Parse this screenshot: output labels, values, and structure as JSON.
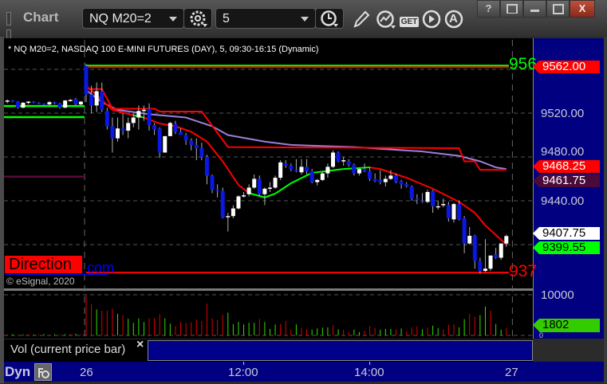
{
  "window": {
    "title": "Chart",
    "symbol": "NQ M20=2",
    "interval": "5",
    "icons": [
      "grip-icon",
      "gear-icon",
      "clock-icon",
      "pencil-icon",
      "line-study-icon",
      "get-icon",
      "play-icon",
      "alert-a-icon"
    ],
    "get_label": "GET",
    "a_label": "A",
    "buttons": {
      "help": "?",
      "close": "X"
    }
  },
  "chart": {
    "header": "* NQ M20=2, NASDAQ 100 E-MINI FUTURES (DAY), 5, 09:30-16:15 (Dynamic)",
    "watermark_box": "Direction",
    "watermark_link": ".com",
    "copyright": "© eSignal, 2020",
    "level_labels": [
      {
        "text": "956",
        "color": "#00ff00"
      },
      {
        "text": "937",
        "color": "#ff0000"
      }
    ],
    "price_tags": [
      {
        "text": "9562.00",
        "bg": "#ff0000",
        "fg": "#ffffff"
      },
      {
        "text": "9468.25",
        "bg": "#ff0000",
        "fg": "#ffffff"
      },
      {
        "text": "9461.75",
        "bg": "#4a0a3a",
        "fg": "#ffffff"
      },
      {
        "text": "9407.75",
        "bg": "#ffffff",
        "fg": "#000000"
      },
      {
        "text": "9399.55",
        "bg": "#00ff00",
        "fg": "#000000"
      }
    ],
    "volume_tag": {
      "text": "1802",
      "bg": "#33cc00",
      "fg": "#000000"
    },
    "volume_ticks": [
      "10000",
      "0"
    ],
    "volume_legend": "Vol (current price bar)",
    "legend_close": "×",
    "dyn_label": "Dyn",
    "colors": {
      "up": "#ffffff",
      "down": "#0a18e6",
      "wick": "#b0b0b0",
      "vol_up": "#33dd00",
      "vol_down": "#dd0000",
      "fast_up": "#00ff00",
      "fast_down": "#ff0000",
      "slow_step": "#ff0000",
      "mid": "#9b7fd8",
      "axis_bg": "#000080"
    }
  },
  "chart_data": {
    "type": "candlestick",
    "title": "* NQ M20=2, NASDAQ 100 E-MINI FUTURES (DAY), 5, 09:30-16:15 (Dynamic)",
    "ylim": [
      9361,
      9587
    ],
    "y_ticks": [
      "9520.00",
      "9480.00",
      "9440.00"
    ],
    "y_tick_values": [
      9520,
      9480,
      9440
    ],
    "grid_values": [
      9560,
      9520,
      9480,
      9440,
      9400
    ],
    "x_ticks": [
      "26",
      "12:00",
      "14:00",
      "27"
    ],
    "x_tick_times": [
      "09:30",
      "12:00",
      "14:00",
      "16:15"
    ],
    "grid": true,
    "candles_columns": [
      "time",
      "open",
      "high",
      "low",
      "close"
    ],
    "prior_session_candles": [
      [
        "15:00",
        9531,
        9532.5,
        9529,
        9531.5
      ],
      [
        "15:05",
        9531.5,
        9532,
        9530,
        9530.5
      ],
      [
        "15:10",
        9530.5,
        9531,
        9524,
        9525
      ],
      [
        "15:15",
        9525,
        9530,
        9524.5,
        9529.5
      ],
      [
        "15:20",
        9529.5,
        9531,
        9528,
        9530.5
      ],
      [
        "15:25",
        9530.5,
        9531,
        9529,
        9529.5
      ],
      [
        "15:30",
        9529.5,
        9530,
        9528,
        9528.5
      ],
      [
        "15:35",
        9528.5,
        9529,
        9527,
        9528
      ],
      [
        "15:40",
        9528,
        9531,
        9527,
        9530
      ],
      [
        "15:45",
        9530,
        9530.5,
        9528,
        9529
      ],
      [
        "15:50",
        9529,
        9529.5,
        9524,
        9525
      ],
      [
        "15:55",
        9525,
        9532,
        9524.5,
        9531.5
      ],
      [
        "16:00",
        9531.5,
        9533,
        9530.5,
        9532
      ],
      [
        "16:05",
        9533,
        9534,
        9527,
        9528
      ],
      [
        "16:10",
        9528,
        9531,
        9527,
        9530.5
      ]
    ],
    "candles": [
      [
        "09:30",
        9563,
        9565,
        9530,
        9537
      ],
      [
        "09:35",
        9537,
        9545,
        9520,
        9527
      ],
      [
        "09:40",
        9527,
        9548,
        9521,
        9540
      ],
      [
        "09:45",
        9540,
        9548,
        9521,
        9523
      ],
      [
        "09:50",
        9522,
        9525,
        9505,
        9508
      ],
      [
        "09:55",
        9508,
        9516,
        9484,
        9497
      ],
      [
        "10:00",
        9497,
        9516,
        9494,
        9506
      ],
      [
        "10:05",
        9506,
        9520,
        9500,
        9504
      ],
      [
        "10:10",
        9504,
        9516,
        9497,
        9511
      ],
      [
        "10:15",
        9511,
        9520,
        9507,
        9516
      ],
      [
        "10:20",
        9516,
        9527,
        9505,
        9522
      ],
      [
        "10:25",
        9522,
        9527,
        9513,
        9523
      ],
      [
        "10:30",
        9524,
        9529,
        9504,
        9509
      ],
      [
        "10:35",
        9509,
        9511,
        9500,
        9505
      ],
      [
        "10:40",
        9506,
        9507,
        9479,
        9484
      ],
      [
        "10:45",
        9484,
        9499,
        9484,
        9499
      ],
      [
        "10:50",
        9499,
        9512,
        9499,
        9511
      ],
      [
        "10:55",
        9510,
        9513,
        9501,
        9503
      ],
      [
        "11:00",
        9503,
        9506,
        9500,
        9500
      ],
      [
        "11:05",
        9500,
        9502,
        9491,
        9495
      ],
      [
        "11:10",
        9495,
        9497,
        9486,
        9491
      ],
      [
        "11:15",
        9491,
        9497,
        9477,
        9488
      ],
      [
        "11:20",
        9488,
        9493,
        9477,
        9480
      ],
      [
        "11:25",
        9480,
        9482,
        9455,
        9463
      ],
      [
        "11:30",
        9463,
        9464,
        9447,
        9450
      ],
      [
        "11:35",
        9450,
        9455,
        9443,
        9449
      ],
      [
        "11:40",
        9449,
        9452,
        9424,
        9425
      ],
      [
        "11:45",
        9425,
        9429,
        9412,
        9426
      ],
      [
        "11:50",
        9426,
        9436,
        9424,
        9433
      ],
      [
        "11:55",
        9433,
        9445,
        9432,
        9444
      ],
      [
        "12:00",
        9444,
        9448,
        9443,
        9445
      ],
      [
        "12:05",
        9446,
        9455,
        9444,
        9452
      ],
      [
        "12:10",
        9452,
        9464,
        9451,
        9460
      ],
      [
        "12:15",
        9460,
        9463,
        9444,
        9446
      ],
      [
        "12:20",
        9446,
        9452,
        9436,
        9451
      ],
      [
        "12:25",
        9451,
        9457,
        9448,
        9452
      ],
      [
        "12:30",
        9452,
        9463,
        9451,
        9461
      ],
      [
        "12:35",
        9461,
        9477,
        9459,
        9475
      ],
      [
        "12:40",
        9474,
        9477,
        9470,
        9472
      ],
      [
        "12:45",
        9472,
        9474,
        9467,
        9469
      ],
      [
        "12:50",
        9468,
        9478,
        9466,
        9467
      ],
      [
        "12:55",
        9466,
        9478,
        9464,
        9471
      ],
      [
        "13:00",
        9471,
        9478,
        9464,
        9467
      ],
      [
        "13:05",
        9467,
        9469,
        9456,
        9457
      ],
      [
        "13:10",
        9457,
        9460,
        9454,
        9459
      ],
      [
        "13:15",
        9459,
        9467,
        9458,
        9465
      ],
      [
        "13:20",
        9465,
        9474,
        9461,
        9471
      ],
      [
        "13:25",
        9471,
        9486,
        9470,
        9484
      ],
      [
        "13:30",
        9484,
        9485,
        9475,
        9476
      ],
      [
        "13:35",
        9476,
        9480,
        9472,
        9477
      ],
      [
        "13:40",
        9476,
        9478,
        9471,
        9473
      ],
      [
        "13:45",
        9473,
        9474,
        9463,
        9465
      ],
      [
        "13:50",
        9465,
        9470,
        9463,
        9469
      ],
      [
        "13:55",
        9469,
        9474,
        9466,
        9467
      ],
      [
        "14:00",
        9467,
        9471,
        9458,
        9460
      ],
      [
        "14:05",
        9460,
        9465,
        9457,
        9458
      ],
      [
        "14:10",
        9459,
        9468,
        9455,
        9457
      ],
      [
        "14:15",
        9457,
        9463,
        9453,
        9460
      ],
      [
        "14:20",
        9460,
        9468,
        9459,
        9463
      ],
      [
        "14:25",
        9463,
        9465,
        9456,
        9457
      ],
      [
        "14:30",
        9458,
        9459,
        9451,
        9455
      ],
      [
        "14:35",
        9455,
        9457,
        9452,
        9453
      ],
      [
        "14:40",
        9453,
        9454,
        9440,
        9442
      ],
      [
        "14:45",
        9442,
        9446,
        9437,
        9441
      ],
      [
        "14:50",
        9440,
        9447,
        9438,
        9439
      ],
      [
        "14:55",
        9439,
        9450,
        9438,
        9448
      ],
      [
        "15:00",
        9449,
        9450,
        9429,
        9435
      ],
      [
        "15:05",
        9434,
        9440,
        9432,
        9435
      ],
      [
        "15:10",
        9436,
        9442,
        9434,
        9437
      ],
      [
        "15:15",
        9436,
        9439,
        9421,
        9424
      ],
      [
        "15:20",
        9423,
        9438,
        9420,
        9437
      ],
      [
        "15:25",
        9437,
        9440,
        9422,
        9423
      ],
      [
        "15:30",
        9424,
        9426,
        9392,
        9401
      ],
      [
        "15:35",
        9401,
        9416,
        9400,
        9408
      ],
      [
        "15:40",
        9408,
        9409,
        9378,
        9385
      ],
      [
        "15:45",
        9385,
        9388,
        9373,
        9376
      ],
      [
        "15:50",
        9376,
        9405,
        9375,
        9378
      ],
      [
        "15:55",
        9378,
        9390,
        9376,
        9390
      ],
      [
        "16:00",
        9391,
        9397,
        9387,
        9388
      ],
      [
        "16:05",
        9388,
        9401,
        9386,
        9401
      ],
      [
        "16:10",
        9401,
        9409,
        9398,
        9407.75
      ]
    ],
    "levels": [
      {
        "price": 9562,
        "color": "#ff0000",
        "label": "956"
      },
      {
        "price": 9374.5,
        "color": "#ff0000",
        "label": "937"
      }
    ],
    "prior_session_levels": [
      {
        "price": 9526.5,
        "color": "#00ff00"
      },
      {
        "price": 9516.4,
        "color": "#00ff00"
      },
      {
        "price": 9462,
        "color": "#5a0a3a"
      }
    ],
    "indicators": {
      "step_line": [
        [
          "09:30",
          9542
        ],
        [
          "09:45",
          9542
        ],
        [
          "09:55",
          9524
        ],
        [
          "10:35",
          9524
        ],
        [
          "10:40",
          9521.5
        ],
        [
          "11:20",
          9521.5
        ],
        [
          "11:45",
          9489
        ],
        [
          "15:25",
          9488
        ],
        [
          "15:30",
          9476
        ],
        [
          "15:40",
          9476
        ],
        [
          "15:45",
          9468.25
        ],
        [
          "16:10",
          9468.25
        ]
      ],
      "mid_line": [
        [
          "09:30",
          9541
        ],
        [
          "09:45",
          9530
        ],
        [
          "10:00",
          9523
        ],
        [
          "10:30",
          9519
        ],
        [
          "11:05",
          9516
        ],
        [
          "11:30",
          9508
        ],
        [
          "11:45",
          9500
        ],
        [
          "12:20",
          9494
        ],
        [
          "12:45",
          9491
        ],
        [
          "13:45",
          9489
        ],
        [
          "14:50",
          9485
        ],
        [
          "15:25",
          9481
        ],
        [
          "15:45",
          9476
        ],
        [
          "16:00",
          9470.5
        ],
        [
          "16:10",
          9469
        ]
      ],
      "fast_line": [
        [
          "09:30",
          9545,
          "dn"
        ],
        [
          "09:45",
          9532,
          "dn"
        ],
        [
          "09:55",
          9523,
          "dn"
        ],
        [
          "10:15",
          9518,
          "up"
        ],
        [
          "10:25",
          9516,
          "dn"
        ],
        [
          "10:40",
          9510.5,
          "dn"
        ],
        [
          "10:55",
          9508,
          "dn"
        ],
        [
          "11:10",
          9503,
          "dn"
        ],
        [
          "11:25",
          9494,
          "dn"
        ],
        [
          "11:40",
          9476,
          "dn"
        ],
        [
          "11:55",
          9454.5,
          "dn"
        ],
        [
          "12:05",
          9447,
          "up"
        ],
        [
          "12:20",
          9443,
          "up"
        ],
        [
          "12:30",
          9446.5,
          "up"
        ],
        [
          "12:45",
          9456,
          "up"
        ],
        [
          "13:05",
          9465.5,
          "up"
        ],
        [
          "13:35",
          9469,
          "up"
        ],
        [
          "14:00",
          9470.5,
          "dn"
        ],
        [
          "14:10",
          9469,
          "dn"
        ],
        [
          "14:35",
          9461,
          "dn"
        ],
        [
          "15:00",
          9451,
          "dn"
        ],
        [
          "15:25",
          9439,
          "dn"
        ],
        [
          "15:40",
          9429,
          "dn"
        ],
        [
          "15:50",
          9417.5,
          "dn"
        ],
        [
          "16:10",
          9400,
          "dn"
        ]
      ]
    },
    "volume": {
      "ylim": [
        0,
        10000
      ],
      "last": 1802,
      "prior_values": [
        250,
        300,
        200,
        250,
        300,
        200,
        250,
        300,
        200,
        250,
        250,
        300,
        350,
        400,
        300
      ],
      "values": [
        10000,
        7700,
        6400,
        6100,
        6100,
        6600,
        5300,
        5000,
        4100,
        3100,
        4200,
        3300,
        4200,
        4300,
        5200,
        4200,
        2900,
        2300,
        3300,
        3100,
        3200,
        3900,
        3500,
        7800,
        4200,
        3800,
        5100,
        5600,
        2800,
        3300,
        2700,
        3100,
        3100,
        4000,
        3300,
        1600,
        2700,
        2800,
        3600,
        1400,
        2700,
        1800,
        1500,
        1400,
        1700,
        1900,
        2000,
        2500,
        1500,
        1400,
        850,
        1400,
        850,
        1100,
        2300,
        1800,
        1400,
        1600,
        1600,
        1500,
        1700,
        850,
        2000,
        2200,
        1500,
        2000,
        2400,
        1800,
        1500,
        2600,
        2800,
        2000,
        4000,
        5300,
        4600,
        5000,
        7100,
        6100,
        2800,
        1400,
        1802
      ],
      "direction": "rrgrrrgrggggrrrggrrrrrrrrrrggggggrgggrrrgrrgggg rgrrggrrrgggrgrrrgrggrrrggrrggrgg"
    }
  }
}
